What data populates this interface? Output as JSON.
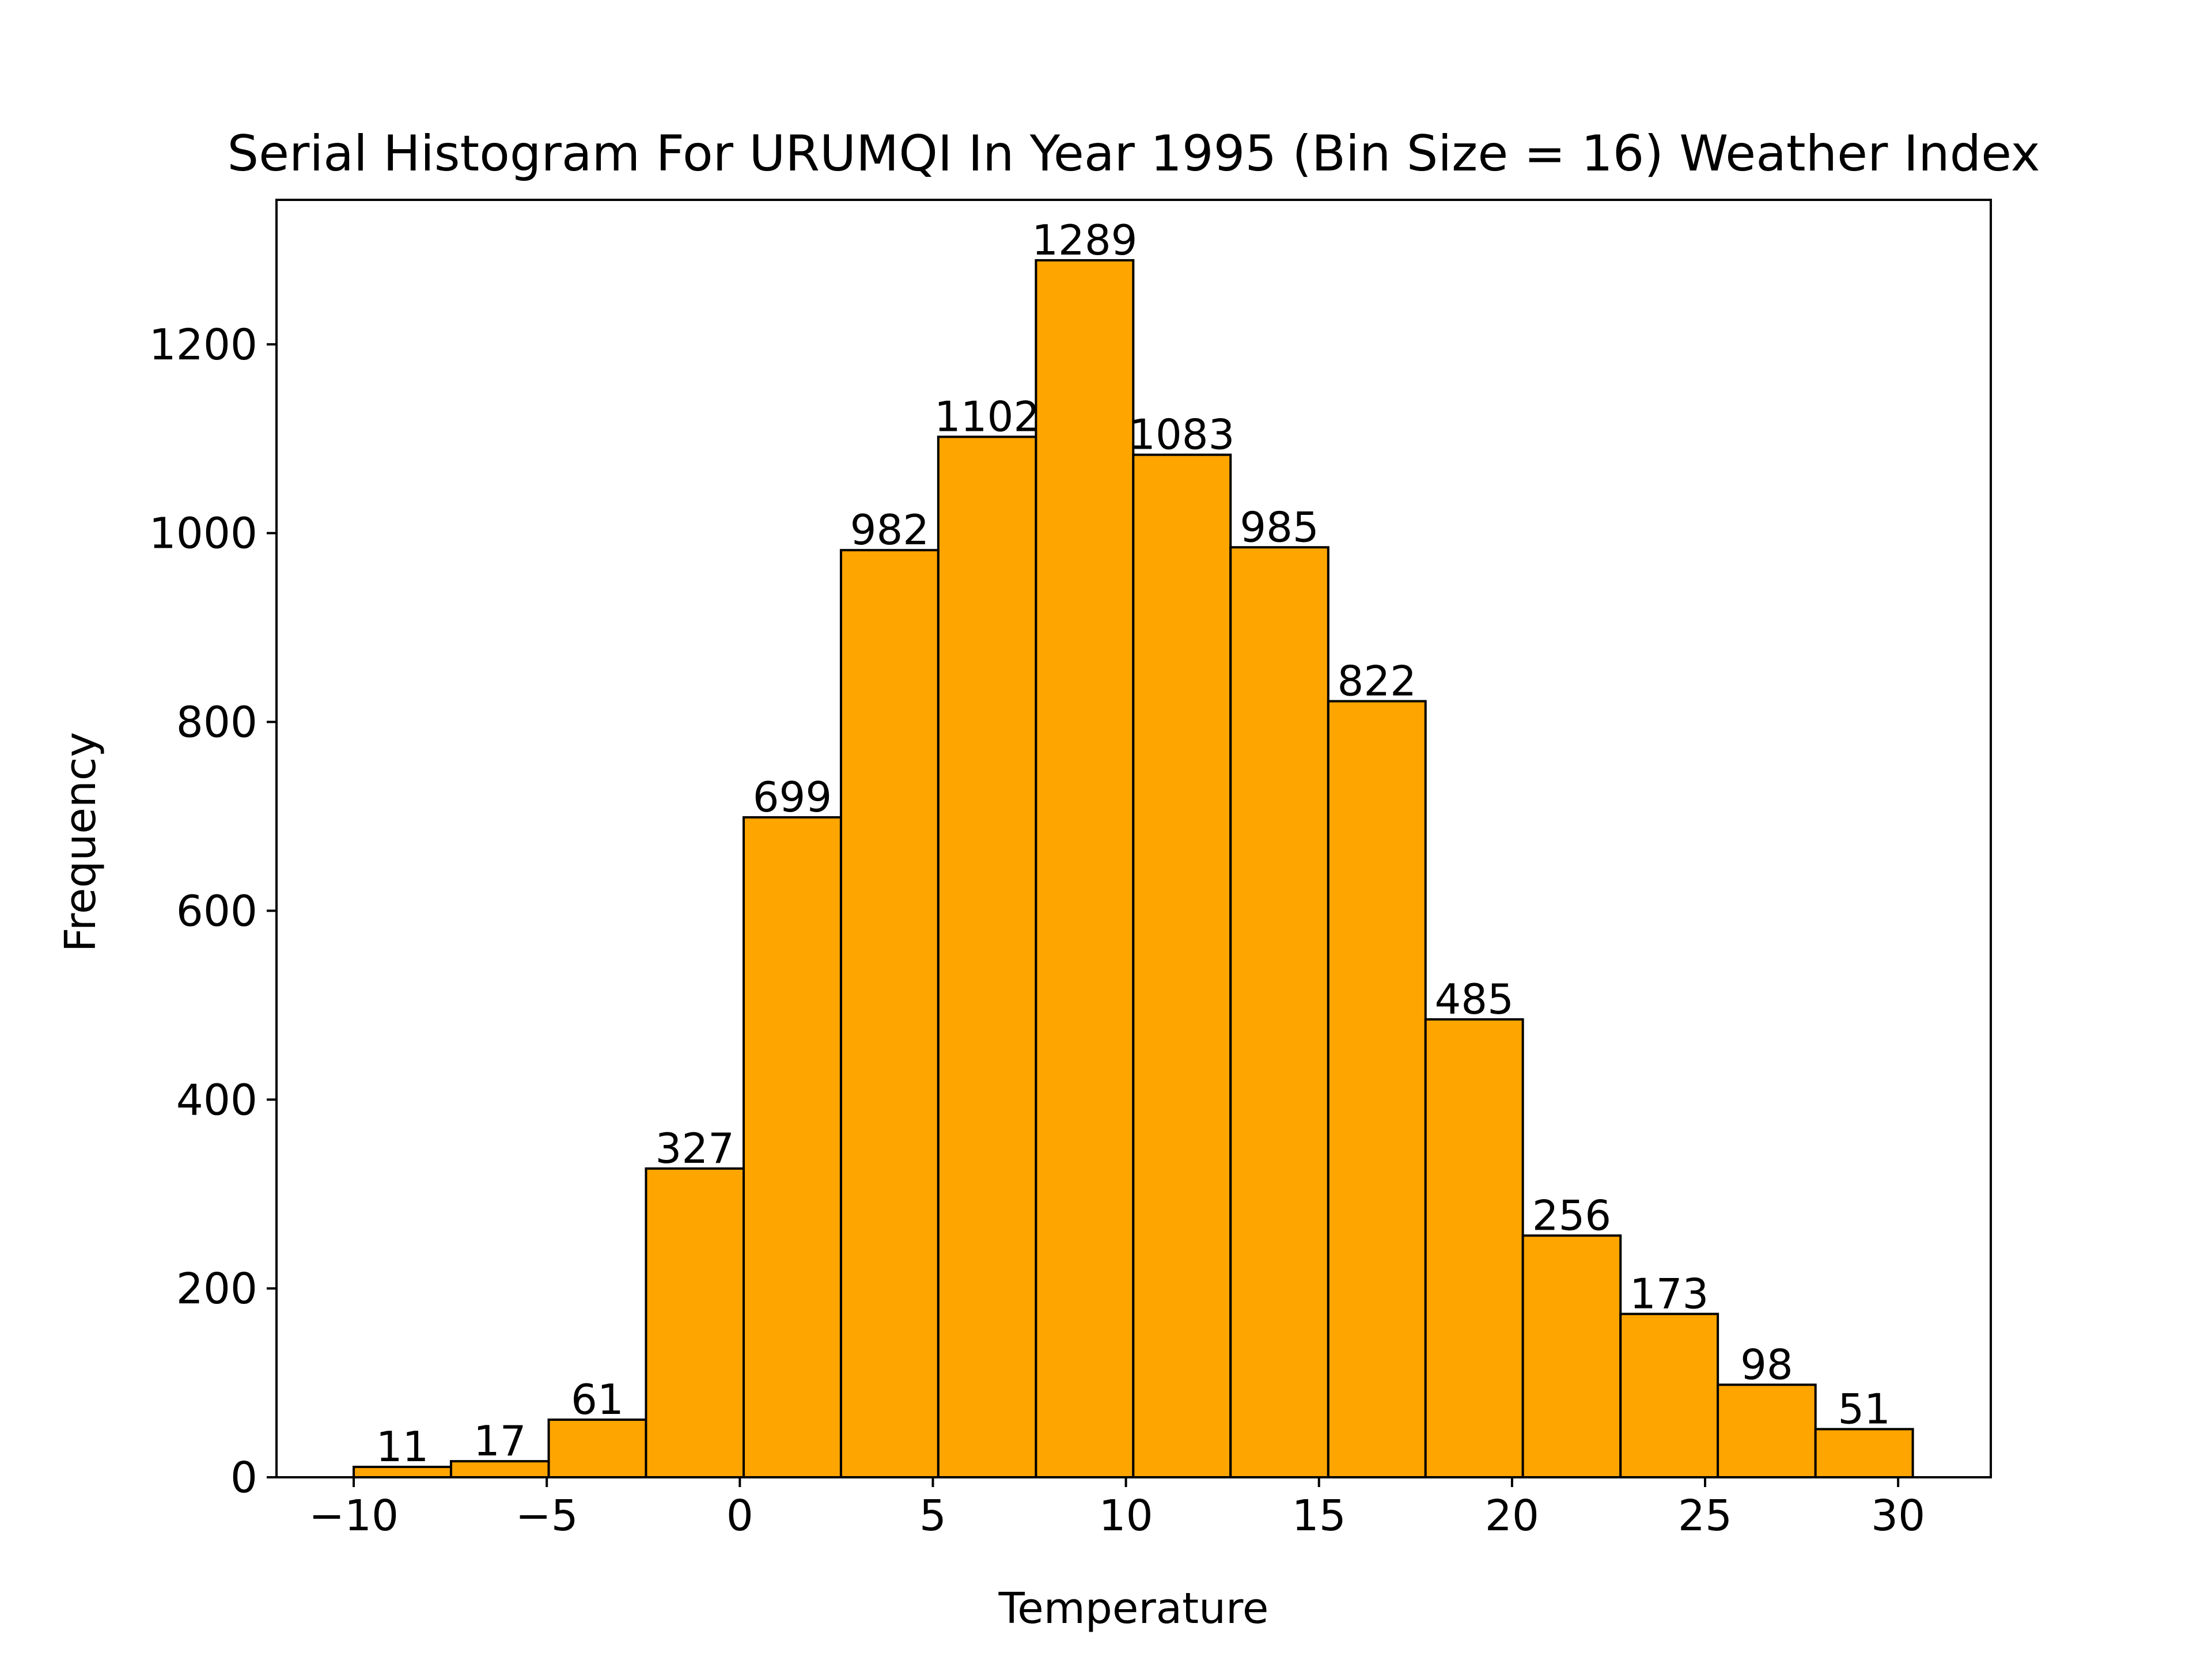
{
  "chart_data": {
    "type": "bar",
    "title": "Serial Histogram For URUMQI In Year 1995 (Bin Size = 16) Weather Index",
    "xlabel": "Temperature",
    "ylabel": "Frequency",
    "bin_edges": [
      -10.0,
      -7.48,
      -4.95,
      -2.43,
      0.1,
      2.62,
      5.14,
      7.67,
      10.19,
      12.71,
      15.24,
      17.76,
      20.28,
      22.81,
      25.33,
      27.86,
      30.38
    ],
    "values": [
      11,
      17,
      61,
      327,
      699,
      982,
      1102,
      1289,
      1083,
      985,
      822,
      485,
      256,
      173,
      98,
      51
    ],
    "data_labels": [
      "11",
      "17",
      "61",
      "327",
      "699",
      "982",
      "1102",
      "1289",
      "1083",
      "985",
      "822",
      "485",
      "256",
      "173",
      "98",
      "51"
    ],
    "xlim": [
      -12.0,
      32.4
    ],
    "ylim": [
      0,
      1353
    ],
    "x_ticks": [
      -10,
      -5,
      0,
      5,
      10,
      15,
      20,
      25,
      30
    ],
    "x_tick_labels": [
      "−10",
      "−5",
      "0",
      "5",
      "10",
      "15",
      "20",
      "25",
      "30"
    ],
    "y_ticks": [
      0,
      200,
      400,
      600,
      800,
      1000,
      1200
    ],
    "y_tick_labels": [
      "0",
      "200",
      "400",
      "600",
      "800",
      "1000",
      "1200"
    ],
    "bar_color": "#ffa500",
    "edge_color": "#000000",
    "grid": false,
    "legend": "none"
  }
}
